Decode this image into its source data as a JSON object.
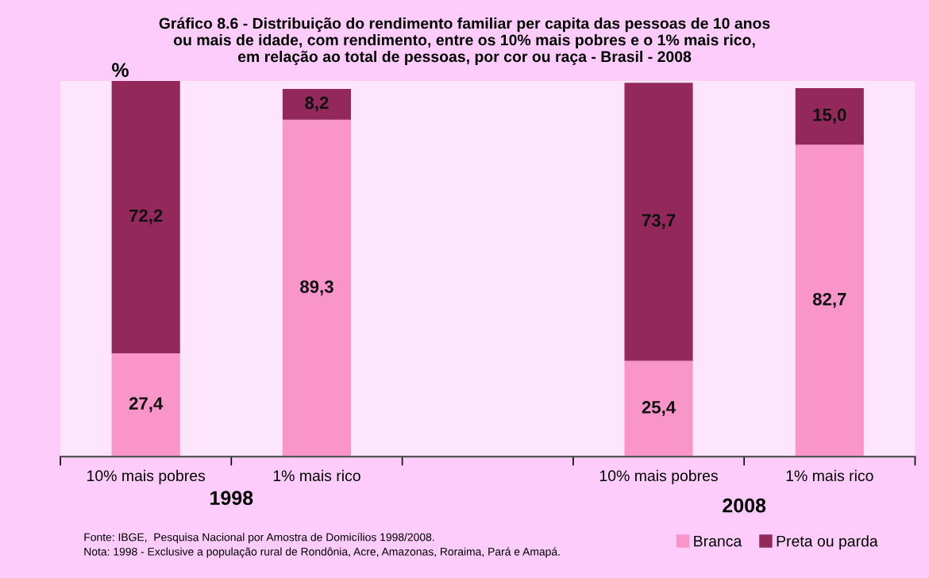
{
  "chart_data": {
    "type": "bar",
    "stacked": true,
    "title": "Gráfico 8.6 - Distribuição do rendimento familiar per capita das pessoas de 10 anos\nou mais de idade, com rendimento, entre os 10% mais pobres e o 1% mais rico,\nem relação ao total de pessoas, por cor ou raça - Brasil - 2008",
    "ylabel": "%",
    "categories": [
      "10% mais pobres",
      "1% mais rico",
      null,
      "10% mais pobres",
      "1% mais rico"
    ],
    "series": [
      {
        "name": "Branca",
        "color": "#f995c8",
        "values": [
          27.4,
          89.3,
          null,
          25.4,
          82.7
        ],
        "value_labels": [
          "27,4",
          "89,3",
          null,
          "25,4",
          "82,7"
        ]
      },
      {
        "name": "Preta ou parda",
        "color": "#93295a",
        "values": [
          72.2,
          8.2,
          null,
          73.7,
          15.0
        ],
        "value_labels": [
          "72,2",
          "8,2",
          null,
          "73,7",
          "15,0"
        ]
      }
    ],
    "annotations": [
      "1998",
      "2008",
      "Fonte: IBGE,  Pesquisa Nacional por Amostra de Domicílios 1998/2008.\nNota: 1998 - Exclusive a população rural de Rondônia, Acre, Amazonas, Roraima, Pará e Amapá."
    ],
    "tick_labels": "x",
    "grid": false,
    "legend": "bottom right"
  }
}
